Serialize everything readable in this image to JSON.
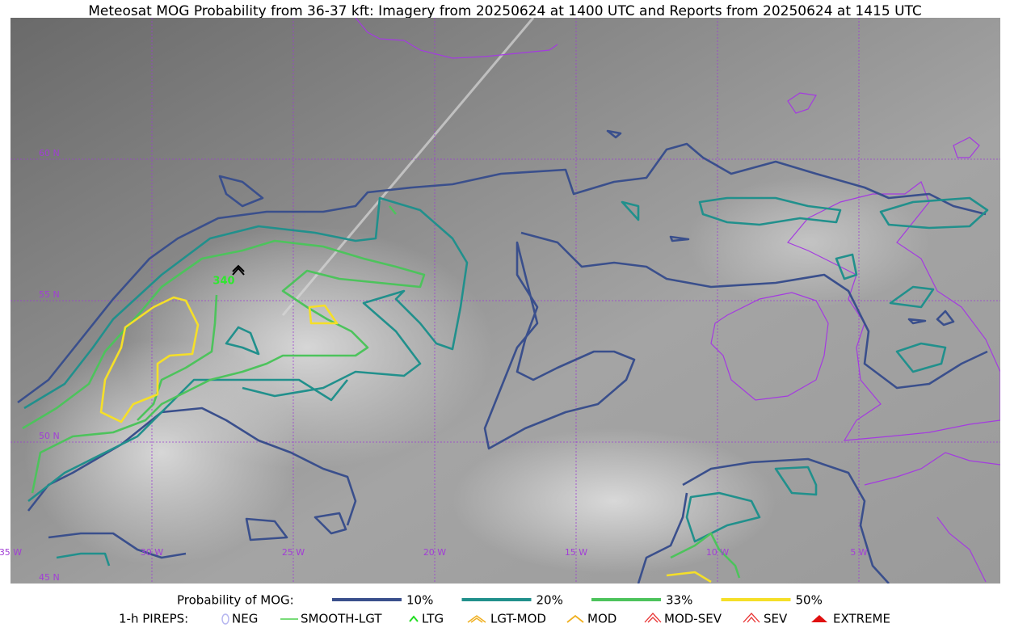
{
  "title": "Meteosat MOG Probability from 36-37 kft: Imagery from 20250624 at 1400 UTC and Reports from 20250624 at 1415 UTC",
  "map": {
    "latitude_labels": [
      "60 N",
      "55 N",
      "50 N",
      "45 N"
    ],
    "longitude_labels": [
      "35 W",
      "30 W",
      "25 W",
      "20 W",
      "15 W",
      "10 W",
      "5 W"
    ],
    "report_label": "340"
  },
  "legend": {
    "probability_title": "Probability of MOG:",
    "probability_levels": [
      {
        "label": "10%",
        "color": "#3a4f8c"
      },
      {
        "label": "20%",
        "color": "#21908c"
      },
      {
        "label": "33%",
        "color": "#4dc35c"
      },
      {
        "label": "50%",
        "color": "#f5df28"
      }
    ],
    "pirep_title": "1-h PIREPS:",
    "pirep_types": [
      "NEG",
      "SMOOTH-LGT",
      "LTG",
      "LGT-MOD",
      "MOD",
      "MOD-SEV",
      "SEV",
      "EXTREME"
    ]
  }
}
